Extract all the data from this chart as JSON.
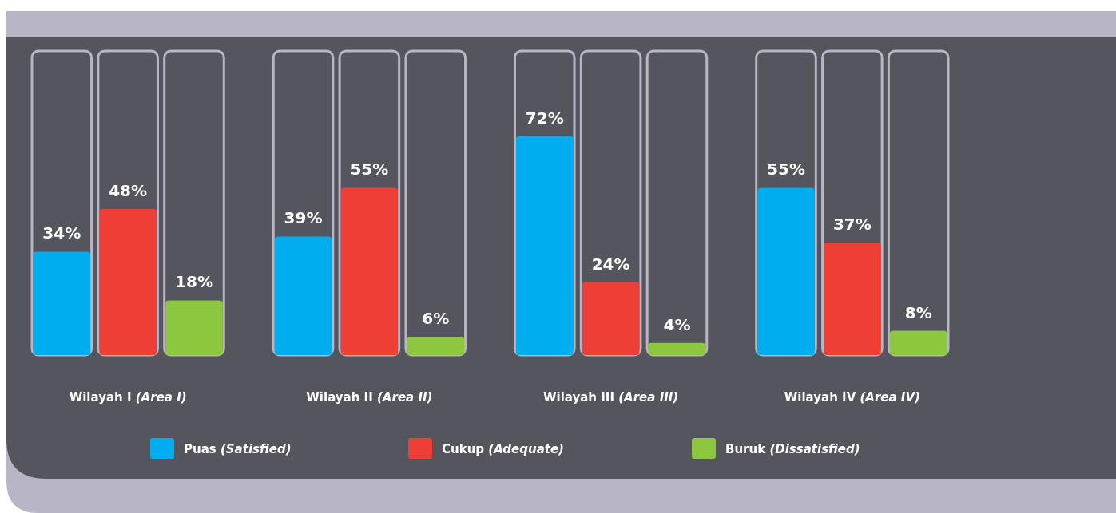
{
  "chart_data": {
    "type": "bar",
    "categories": [
      "Wilayah I (Area I)",
      "Wilayah II (Area II)",
      "Wilayah III (Area III)",
      "Wilayah IV (Area IV)"
    ],
    "ylim": [
      0,
      100
    ],
    "legend": "bottom",
    "series": [
      {
        "name": "Puas (Satisfied)",
        "color": "#00aeef",
        "values": [
          34,
          39,
          72,
          55
        ],
        "value_labels": [
          "34%",
          "39%",
          "72%",
          "55%"
        ]
      },
      {
        "name": "Cukup (Adequate)",
        "color": "#ef3e36",
        "values": [
          48,
          55,
          24,
          37
        ],
        "value_labels": [
          "48%",
          "55%",
          "24%",
          "37%"
        ]
      },
      {
        "name": "Buruk (Dissatisfied)",
        "color": "#8dc63f",
        "values": [
          18,
          6,
          4,
          8
        ],
        "value_labels": [
          "18%",
          "6%",
          "4%",
          "8%"
        ]
      }
    ]
  }
}
